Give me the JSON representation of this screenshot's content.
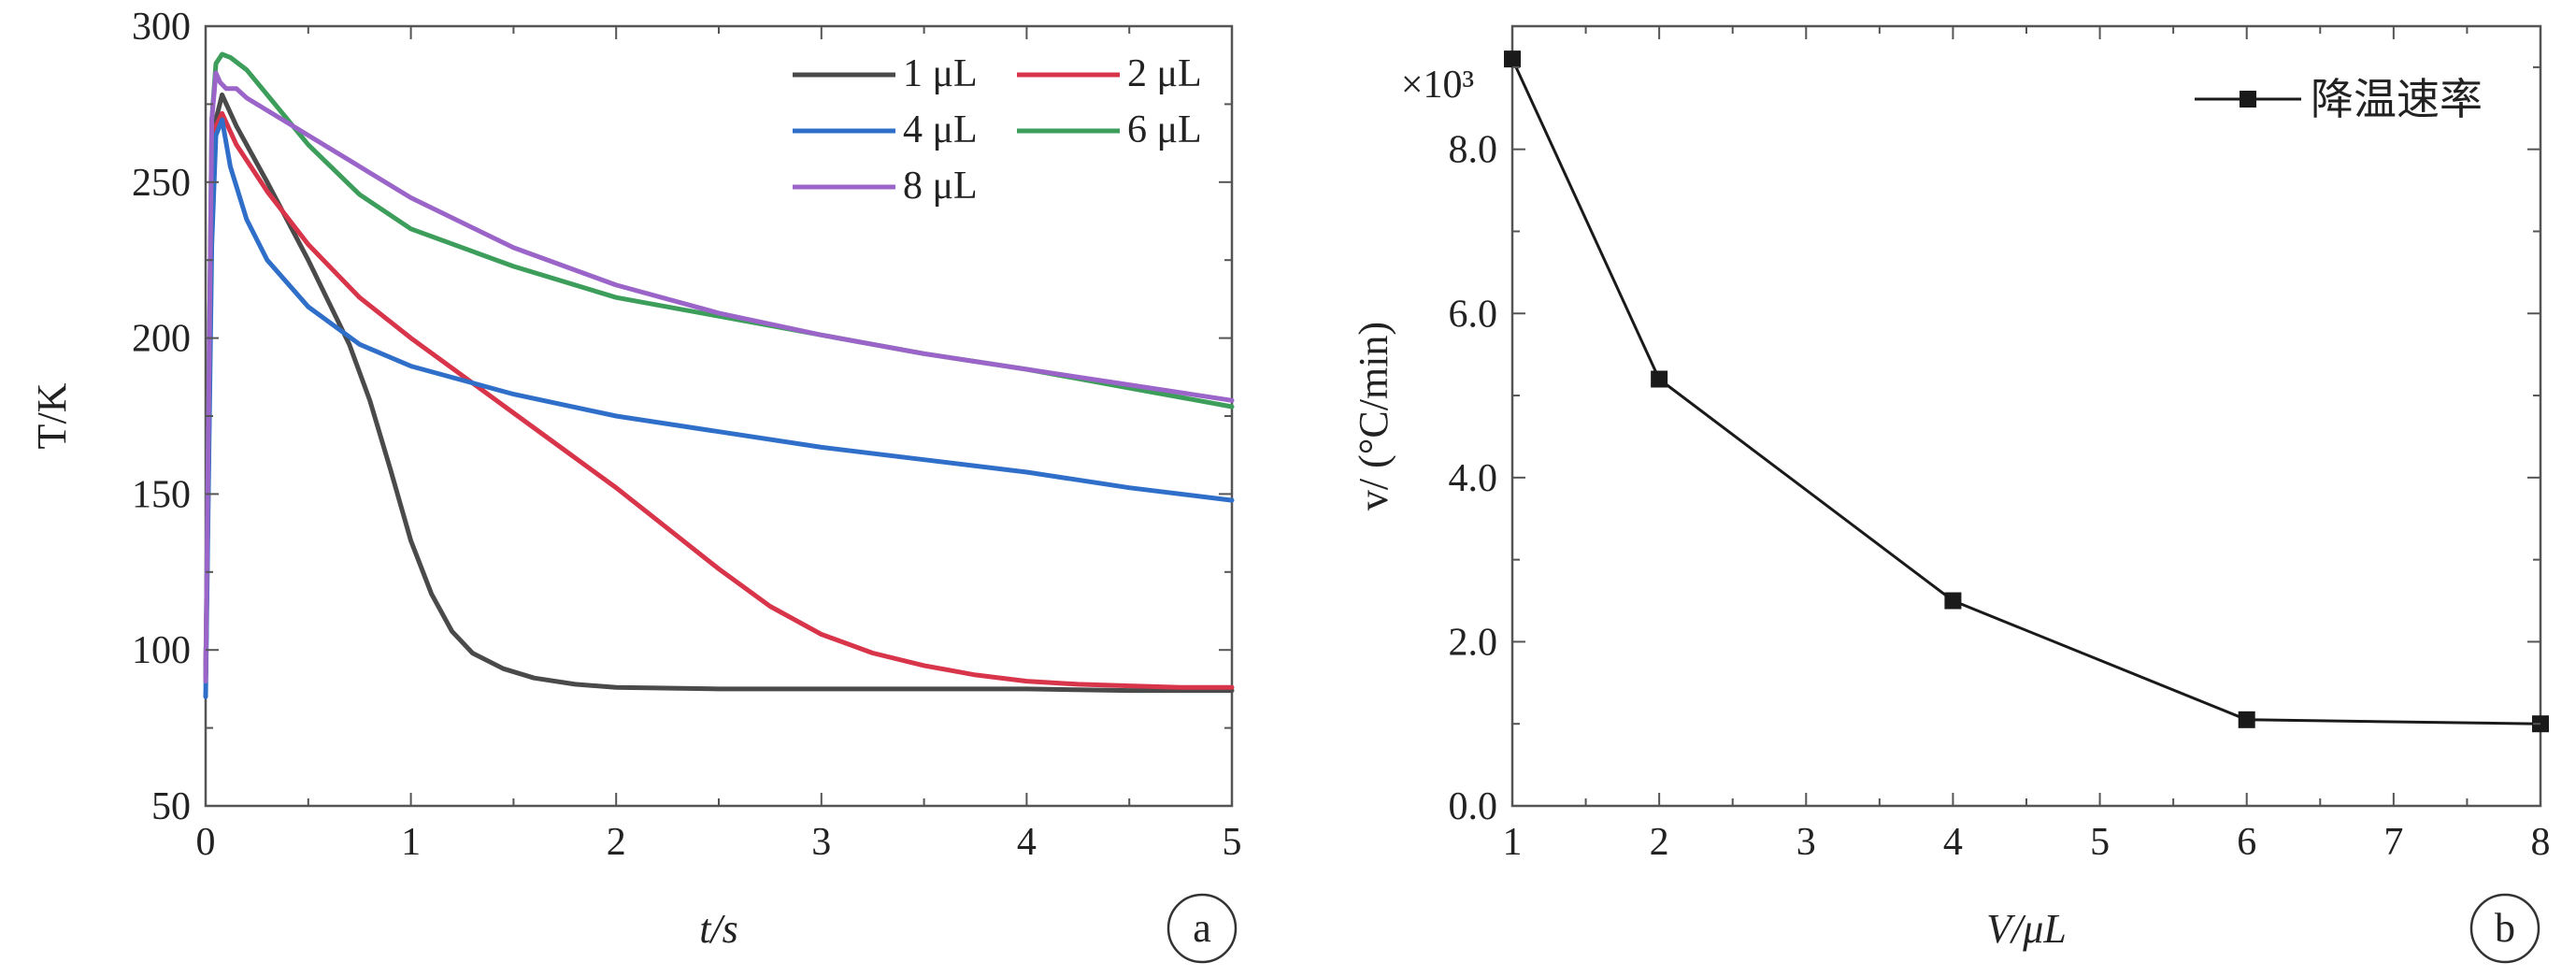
{
  "chart_data": [
    {
      "type": "line",
      "panel_label": "a",
      "xlabel": "t/s",
      "ylabel": "T/K",
      "xlim": [
        0,
        5
      ],
      "ylim": [
        50,
        300
      ],
      "xticks": [
        "0",
        "1",
        "2",
        "3",
        "4",
        "5"
      ],
      "yticks": [
        "50",
        "100",
        "150",
        "200",
        "250",
        "300"
      ],
      "grid": false,
      "legend_position": "top-right",
      "series": [
        {
          "name": "1 μL",
          "color": "#4a4a4a",
          "x": [
            0,
            0.03,
            0.05,
            0.08,
            0.15,
            0.3,
            0.5,
            0.7,
            0.8,
            0.9,
            1.0,
            1.1,
            1.2,
            1.3,
            1.45,
            1.6,
            1.8,
            2.0,
            2.5,
            3,
            3.5,
            4,
            4.5,
            5
          ],
          "y": [
            90,
            240,
            270,
            278,
            268,
            250,
            225,
            198,
            180,
            158,
            135,
            118,
            106,
            99,
            94,
            91,
            89,
            88,
            87.5,
            87.5,
            87.5,
            87.5,
            87,
            87
          ]
        },
        {
          "name": "2 μL",
          "color": "#d8344a",
          "x": [
            0,
            0.03,
            0.05,
            0.08,
            0.15,
            0.3,
            0.5,
            0.75,
            1.0,
            1.25,
            1.5,
            1.75,
            2.0,
            2.25,
            2.5,
            2.75,
            3.0,
            3.25,
            3.5,
            3.75,
            4.0,
            4.25,
            4.5,
            4.75,
            5.0
          ],
          "y": [
            90,
            240,
            268,
            272,
            262,
            247,
            230,
            213,
            200,
            188,
            176,
            164,
            152,
            139,
            126,
            114,
            105,
            99,
            95,
            92,
            90,
            89,
            88.5,
            88,
            88
          ]
        },
        {
          "name": "4 μL",
          "color": "#2f6fc9",
          "x": [
            0,
            0.03,
            0.05,
            0.08,
            0.12,
            0.2,
            0.3,
            0.5,
            0.75,
            1.0,
            1.5,
            2.0,
            2.5,
            3.0,
            3.5,
            4.0,
            4.5,
            5.0
          ],
          "y": [
            85,
            230,
            265,
            270,
            255,
            238,
            225,
            210,
            198,
            191,
            182,
            175,
            170,
            165,
            161,
            157,
            152,
            148
          ]
        },
        {
          "name": "6 μL",
          "color": "#3c9e5a",
          "x": [
            0,
            0.03,
            0.05,
            0.08,
            0.12,
            0.2,
            0.3,
            0.5,
            0.75,
            1.0,
            1.5,
            2.0,
            2.5,
            3.0,
            3.5,
            4.0,
            4.5,
            5.0
          ],
          "y": [
            90,
            270,
            288,
            291,
            290,
            286,
            278,
            262,
            246,
            235,
            223,
            213,
            207,
            201,
            195,
            190,
            184,
            178
          ]
        },
        {
          "name": "8 μL",
          "color": "#9b64c8",
          "x": [
            0,
            0.03,
            0.05,
            0.07,
            0.1,
            0.15,
            0.2,
            0.3,
            0.5,
            0.75,
            1.0,
            1.5,
            2.0,
            2.5,
            3.0,
            3.5,
            4.0,
            4.5,
            5.0
          ],
          "y": [
            90,
            270,
            285,
            282,
            280,
            280,
            277,
            273,
            265,
            255,
            245,
            229,
            217,
            208,
            201,
            195,
            190,
            185,
            180
          ]
        }
      ]
    },
    {
      "type": "line",
      "panel_label": "b",
      "xlabel": "V/μL",
      "ylabel": "v/ (°C/min)",
      "y_multiplier": "×10³",
      "xlim": [
        1,
        8
      ],
      "ylim": [
        0,
        9.5
      ],
      "xticks": [
        "1",
        "2",
        "3",
        "4",
        "5",
        "6",
        "7",
        "8"
      ],
      "yticks": [
        "0.0",
        "2.0",
        "4.0",
        "6.0",
        "8.0"
      ],
      "grid": false,
      "legend_position": "top-right",
      "series": [
        {
          "name": "降温速率",
          "color": "#1a1a1a",
          "x": [
            1,
            2,
            4,
            6,
            8
          ],
          "y": [
            9.1,
            5.2,
            2.5,
            1.05,
            1.0
          ]
        }
      ]
    }
  ]
}
